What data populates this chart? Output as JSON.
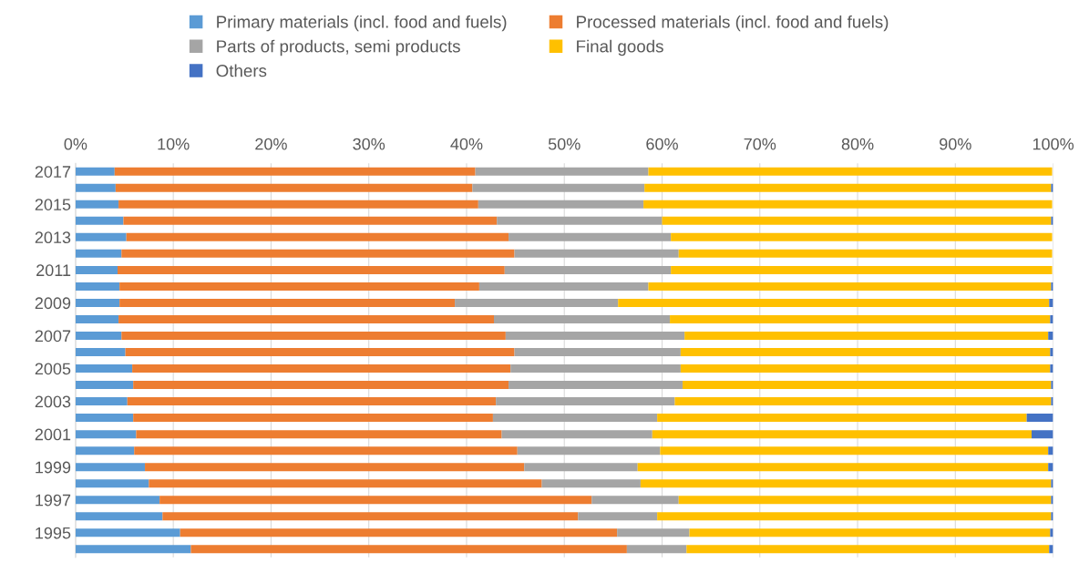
{
  "chart_data": {
    "type": "bar",
    "orientation": "horizontal",
    "stacked": true,
    "categories": [
      "2017",
      null,
      "2015",
      null,
      "2013",
      null,
      "2011",
      null,
      "2009",
      null,
      "2007",
      null,
      "2005",
      null,
      "2003",
      null,
      "2001",
      null,
      "1999",
      null,
      "1997",
      null,
      "1995",
      null
    ],
    "series": [
      {
        "name": "Primary materials (incl. food and fuels)",
        "color": "#5b9bd5",
        "values": [
          4.0,
          4.1,
          4.4,
          4.9,
          5.2,
          4.7,
          4.3,
          4.5,
          4.5,
          4.4,
          4.7,
          5.1,
          5.8,
          5.9,
          5.3,
          5.9,
          6.2,
          6.0,
          7.1,
          7.5,
          8.6,
          8.9,
          10.7,
          11.8
        ]
      },
      {
        "name": "Processed materials (incl. food and fuels)",
        "color": "#ed7d31",
        "values": [
          36.9,
          36.5,
          36.8,
          38.2,
          39.1,
          40.2,
          39.6,
          36.8,
          34.3,
          38.4,
          39.3,
          39.8,
          38.7,
          38.4,
          37.7,
          36.8,
          37.4,
          39.2,
          38.8,
          40.2,
          44.2,
          42.5,
          44.7,
          44.6
        ]
      },
      {
        "name": "Parts of products, semi products",
        "color": "#a5a5a5",
        "values": [
          17.7,
          17.6,
          16.9,
          16.9,
          16.6,
          16.8,
          17.0,
          17.3,
          16.7,
          18.0,
          18.3,
          17.0,
          17.4,
          17.8,
          18.3,
          16.8,
          15.4,
          14.6,
          11.6,
          10.1,
          8.9,
          8.1,
          7.4,
          6.1
        ]
      },
      {
        "name": "Final goods",
        "color": "#ffc000",
        "values": [
          41.3,
          41.6,
          41.8,
          39.8,
          39.0,
          38.2,
          39.0,
          41.2,
          44.1,
          38.9,
          37.2,
          37.8,
          37.8,
          37.7,
          38.5,
          37.8,
          38.8,
          39.7,
          42.0,
          42.0,
          38.1,
          40.3,
          36.9,
          37.1
        ]
      },
      {
        "name": "Others",
        "color": "#4472c4",
        "values": [
          null,
          0.2,
          null,
          0.2,
          null,
          null,
          null,
          0.2,
          0.4,
          0.3,
          0.5,
          0.3,
          0.3,
          0.2,
          0.2,
          2.7,
          2.2,
          0.5,
          0.5,
          0.2,
          0.2,
          0.2,
          0.3,
          0.4
        ]
      }
    ],
    "xlim": [
      0,
      100
    ],
    "xticks": [
      {
        "value": 0,
        "label": "0%"
      },
      {
        "value": 10,
        "label": "10%"
      },
      {
        "value": 20,
        "label": "20%"
      },
      {
        "value": 30,
        "label": "30%"
      },
      {
        "value": 40,
        "label": "40%"
      },
      {
        "value": 50,
        "label": "50%"
      },
      {
        "value": 60,
        "label": "60%"
      },
      {
        "value": 70,
        "label": "70%"
      },
      {
        "value": 80,
        "label": "80%"
      },
      {
        "value": 90,
        "label": "90%"
      },
      {
        "value": 100,
        "label": "100%"
      }
    ],
    "grid": "x",
    "legend": "top"
  }
}
